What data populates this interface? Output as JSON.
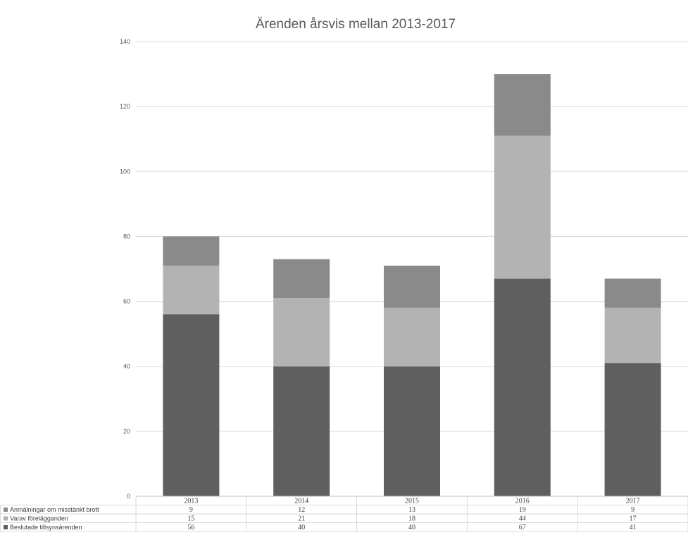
{
  "chart_data": {
    "type": "bar",
    "stacked": true,
    "title": "Ärenden årsvis mellan 2013-2017",
    "categories": [
      "2013",
      "2014",
      "2015",
      "2016",
      "2017"
    ],
    "ylim": [
      0,
      140
    ],
    "yticks": [
      0,
      20,
      40,
      60,
      80,
      100,
      120,
      140
    ],
    "grid": true,
    "legend": "data-table-left",
    "series": [
      {
        "name": "Beslutade tillsynsärenden",
        "values": [
          56,
          40,
          40,
          67,
          41
        ],
        "color": "#5f5f5f"
      },
      {
        "name": "Varav förelägganden",
        "values": [
          15,
          21,
          18,
          44,
          17
        ],
        "color": "#b3b3b3"
      },
      {
        "name": "Anmälningar om misstänkt brott",
        "values": [
          9,
          12,
          13,
          19,
          9
        ],
        "color": "#8a8a8a"
      }
    ]
  }
}
